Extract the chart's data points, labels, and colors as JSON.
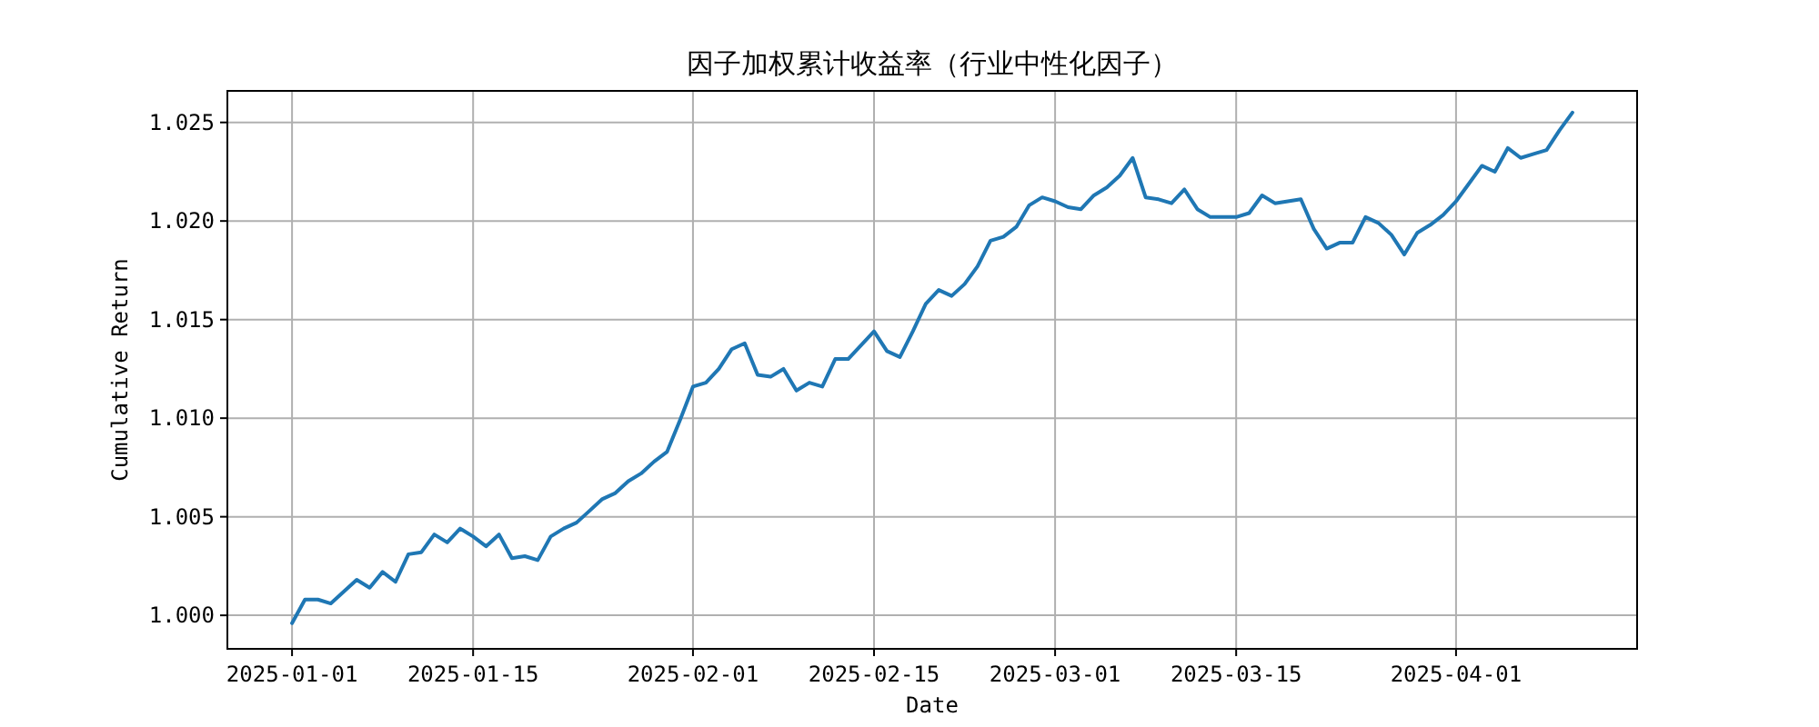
{
  "chart_data": {
    "type": "line",
    "title": "因子加权累计收益率（行业中性化因子）",
    "xlabel": "Date",
    "ylabel": "Cumulative Return",
    "x": [
      "2025-01-01",
      "2025-01-02",
      "2025-01-03",
      "2025-01-04",
      "2025-01-05",
      "2025-01-06",
      "2025-01-07",
      "2025-01-08",
      "2025-01-09",
      "2025-01-10",
      "2025-01-11",
      "2025-01-12",
      "2025-01-13",
      "2025-01-14",
      "2025-01-15",
      "2025-01-16",
      "2025-01-17",
      "2025-01-18",
      "2025-01-19",
      "2025-01-20",
      "2025-01-21",
      "2025-01-22",
      "2025-01-23",
      "2025-01-24",
      "2025-01-25",
      "2025-01-26",
      "2025-01-27",
      "2025-01-28",
      "2025-01-29",
      "2025-01-30",
      "2025-01-31",
      "2025-02-01",
      "2025-02-02",
      "2025-02-03",
      "2025-02-04",
      "2025-02-05",
      "2025-02-06",
      "2025-02-07",
      "2025-02-08",
      "2025-02-09",
      "2025-02-10",
      "2025-02-11",
      "2025-02-12",
      "2025-02-13",
      "2025-02-14",
      "2025-02-15",
      "2025-02-16",
      "2025-02-17",
      "2025-02-18",
      "2025-02-19",
      "2025-02-20",
      "2025-02-21",
      "2025-02-22",
      "2025-02-23",
      "2025-02-24",
      "2025-02-25",
      "2025-02-26",
      "2025-02-27",
      "2025-02-28",
      "2025-03-01",
      "2025-03-02",
      "2025-03-03",
      "2025-03-04",
      "2025-03-05",
      "2025-03-06",
      "2025-03-07",
      "2025-03-08",
      "2025-03-09",
      "2025-03-10",
      "2025-03-11",
      "2025-03-12",
      "2025-03-13",
      "2025-03-14",
      "2025-03-15",
      "2025-03-16",
      "2025-03-17",
      "2025-03-18",
      "2025-03-19",
      "2025-03-20",
      "2025-03-21",
      "2025-03-22",
      "2025-03-23",
      "2025-03-24",
      "2025-03-25",
      "2025-03-26",
      "2025-03-27",
      "2025-03-28",
      "2025-03-29",
      "2025-03-30",
      "2025-03-31",
      "2025-04-01",
      "2025-04-02",
      "2025-04-03",
      "2025-04-04",
      "2025-04-05",
      "2025-04-06",
      "2025-04-07",
      "2025-04-08",
      "2025-04-09",
      "2025-04-10"
    ],
    "series": [
      {
        "color": "#1f77b4",
        "values": [
          0.9996,
          1.0008,
          1.0008,
          1.0006,
          1.0012,
          1.0018,
          1.0014,
          1.0022,
          1.0017,
          1.0031,
          1.0032,
          1.0041,
          1.0037,
          1.0044,
          1.004,
          1.0035,
          1.0041,
          1.0029,
          1.003,
          1.0028,
          1.004,
          1.0044,
          1.0047,
          1.0053,
          1.0059,
          1.0062,
          1.0068,
          1.0072,
          1.0078,
          1.0083,
          1.0099,
          1.0116,
          1.0118,
          1.0125,
          1.0135,
          1.0138,
          1.0122,
          1.0121,
          1.0125,
          1.0114,
          1.0118,
          1.0116,
          1.013,
          1.013,
          1.0137,
          1.0144,
          1.0134,
          1.0131,
          1.0144,
          1.0158,
          1.0165,
          1.0162,
          1.0168,
          1.0177,
          1.019,
          1.0192,
          1.0197,
          1.0208,
          1.0212,
          1.021,
          1.0207,
          1.0206,
          1.0213,
          1.0217,
          1.0223,
          1.0232,
          1.0212,
          1.0211,
          1.0209,
          1.0216,
          1.0206,
          1.0202,
          1.0202,
          1.0202,
          1.0204,
          1.0213,
          1.0209,
          1.021,
          1.0211,
          1.0196,
          1.0186,
          1.0189,
          1.0189,
          1.0202,
          1.0199,
          1.0193,
          1.0183,
          1.0194,
          1.0198,
          1.0203,
          1.021,
          1.0219,
          1.0228,
          1.0225,
          1.0237,
          1.0232,
          1.0234,
          1.0236,
          1.0246,
          1.0255
        ]
      }
    ],
    "xlim": [
      "2024-12-27",
      "2025-04-15"
    ],
    "xticks": [
      "2025-01-01",
      "2025-01-15",
      "2025-02-01",
      "2025-02-15",
      "2025-03-01",
      "2025-03-15",
      "2025-04-01"
    ],
    "ylim": [
      0.9983,
      1.0266
    ],
    "yticks": [
      {
        "value": 1.0,
        "label": "1.000"
      },
      {
        "value": 1.005,
        "label": "1.005"
      },
      {
        "value": 1.01,
        "label": "1.010"
      },
      {
        "value": 1.015,
        "label": "1.015"
      },
      {
        "value": 1.02,
        "label": "1.020"
      },
      {
        "value": 1.025,
        "label": "1.025"
      }
    ],
    "grid": true,
    "marker": "none",
    "line_style": "solid"
  }
}
